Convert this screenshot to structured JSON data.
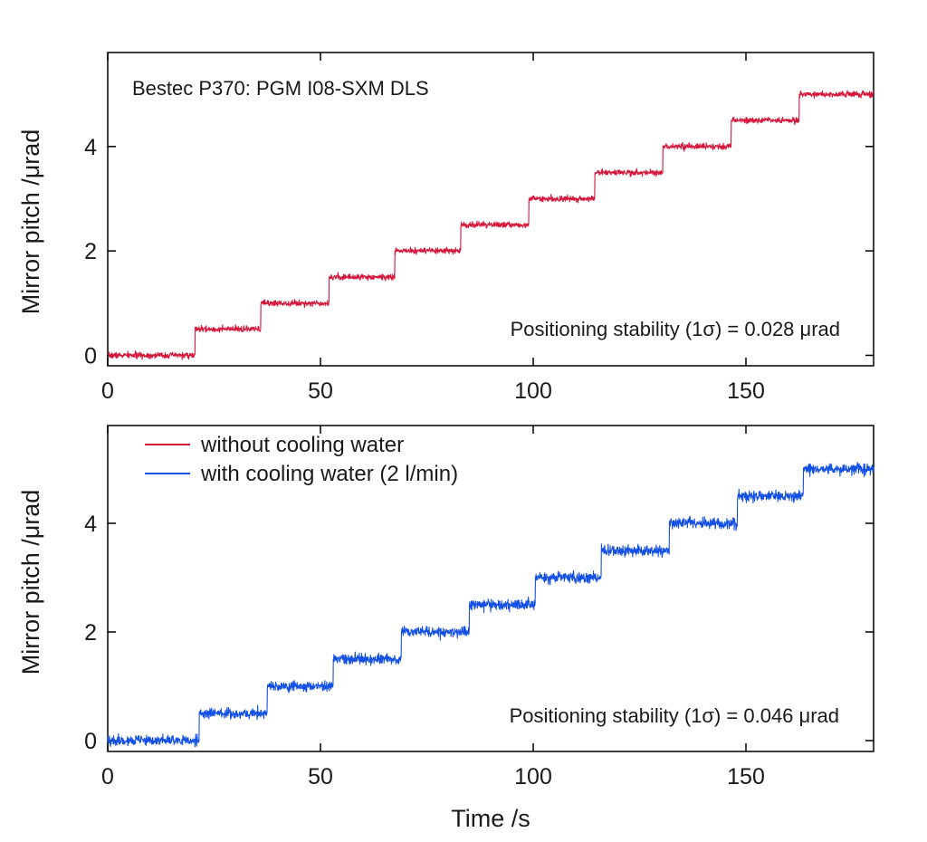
{
  "chart_data": [
    {
      "type": "line",
      "title": "",
      "annotation_top": "Bestec P370: PGM I08-SXM DLS",
      "annotation_bottom": "Positioning stability (1σ) = 0.028 μrad",
      "xlabel": "",
      "ylabel": "Mirror pitch /μrad",
      "xlim": [
        0,
        180
      ],
      "ylim": [
        -0.2,
        5.8
      ],
      "xticks": [
        0,
        50,
        100,
        150
      ],
      "yticks": [
        0,
        2,
        4
      ],
      "grid": false,
      "noise_sigma": 0.028,
      "series": [
        {
          "name": "without cooling water",
          "color": "#d6163a",
          "step_times": [
            0,
            20.5,
            36,
            52,
            67.5,
            83,
            99,
            114.5,
            130.5,
            146.5,
            162.5,
            180
          ],
          "levels": [
            0,
            0.5,
            1.0,
            1.5,
            2.0,
            2.5,
            3.0,
            3.5,
            4.0,
            4.5,
            5.0
          ]
        }
      ]
    },
    {
      "type": "line",
      "title": "",
      "annotation_bottom": "Positioning stability (1σ) = 0.046 μrad",
      "xlabel": "Time /s",
      "ylabel": "Mirror pitch /μrad",
      "xlim": [
        0,
        180
      ],
      "ylim": [
        -0.2,
        5.8
      ],
      "xticks": [
        0,
        50,
        100,
        150
      ],
      "yticks": [
        0,
        2,
        4
      ],
      "grid": false,
      "legend_placement": "top-left",
      "noise_sigma": 0.046,
      "series": [
        {
          "name": "with cooling water (2 l/min)",
          "color": "#1450e6",
          "step_times": [
            0,
            21.5,
            37.5,
            53,
            69,
            85,
            100.5,
            116,
            132,
            148,
            163.5,
            180
          ],
          "levels": [
            0,
            0.5,
            1.0,
            1.5,
            2.0,
            2.5,
            3.0,
            3.5,
            4.0,
            4.5,
            5.0
          ]
        }
      ]
    }
  ],
  "legend": [
    {
      "name": "without cooling water",
      "color": "#d6163a"
    },
    {
      "name": "with cooling water (2 l/min)",
      "color": "#1450e6"
    }
  ]
}
